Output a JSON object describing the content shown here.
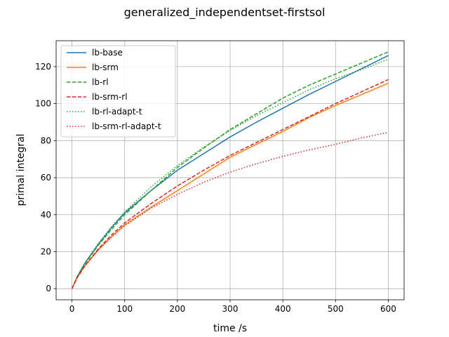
{
  "chart_data": {
    "type": "line",
    "title": "generalized_independentset-firstsol",
    "xlabel": "time /s",
    "ylabel": "primal integral",
    "xlim": [
      -30,
      630
    ],
    "ylim": [
      -6,
      134
    ],
    "xticks": [
      0,
      100,
      200,
      300,
      400,
      500,
      600
    ],
    "yticks": [
      0,
      20,
      40,
      60,
      80,
      100,
      120
    ],
    "grid": true,
    "legend_position": "top-left",
    "series": [
      {
        "name": "lb-base",
        "color": "#1f77b4",
        "dash": "solid",
        "x": [
          0,
          10,
          25,
          50,
          75,
          100,
          150,
          200,
          250,
          300,
          350,
          400,
          450,
          500,
          550,
          600
        ],
        "y": [
          0,
          6.5,
          14,
          24,
          33,
          41,
          53,
          64,
          73,
          82,
          90,
          97.5,
          105,
          112,
          119,
          126
        ]
      },
      {
        "name": "lb-srm",
        "color": "#ff7f0e",
        "dash": "solid",
        "x": [
          0,
          10,
          25,
          50,
          75,
          100,
          150,
          200,
          250,
          300,
          350,
          400,
          450,
          500,
          550,
          600
        ],
        "y": [
          0,
          6,
          12.5,
          21,
          28,
          34.5,
          44,
          53,
          62,
          71,
          78,
          85,
          92.5,
          99,
          105,
          111
        ]
      },
      {
        "name": "lb-rl",
        "color": "#2ca02c",
        "dash": "dashed",
        "x": [
          0,
          10,
          25,
          50,
          75,
          100,
          150,
          200,
          250,
          300,
          350,
          400,
          450,
          500,
          550,
          600
        ],
        "y": [
          0,
          6,
          13.5,
          23.5,
          32,
          40,
          53,
          65.5,
          76,
          86,
          94.5,
          103,
          110,
          116,
          122,
          128
        ]
      },
      {
        "name": "lb-srm-rl",
        "color": "#d62728",
        "dash": "dashed",
        "x": [
          0,
          10,
          25,
          50,
          75,
          100,
          150,
          200,
          250,
          300,
          350,
          400,
          450,
          500,
          550,
          600
        ],
        "y": [
          0,
          6,
          12.5,
          21.5,
          29,
          35.5,
          46,
          55.5,
          64,
          72,
          79,
          86,
          93,
          100,
          106.5,
          113
        ]
      },
      {
        "name": "lb-rl-adapt-t",
        "color": "#2ca02c",
        "dash": "dotted",
        "x": [
          0,
          10,
          25,
          50,
          75,
          100,
          150,
          200,
          250,
          300,
          350,
          400,
          450,
          500,
          550,
          600
        ],
        "y": [
          0,
          6.5,
          14,
          24.5,
          33.5,
          41.5,
          55,
          66.5,
          76.5,
          85.5,
          93.5,
          100.5,
          107.5,
          113.5,
          118.5,
          124
        ]
      },
      {
        "name": "lb-srm-rl-adapt-t",
        "color": "#d62728",
        "dash": "dotted",
        "x": [
          0,
          10,
          25,
          50,
          75,
          100,
          150,
          200,
          250,
          300,
          350,
          400,
          450,
          500,
          550,
          600
        ],
        "y": [
          0,
          6,
          12.5,
          21,
          28,
          34,
          43.5,
          51,
          57.5,
          63,
          67.5,
          71.5,
          75,
          78,
          81.5,
          84.5
        ]
      }
    ]
  }
}
